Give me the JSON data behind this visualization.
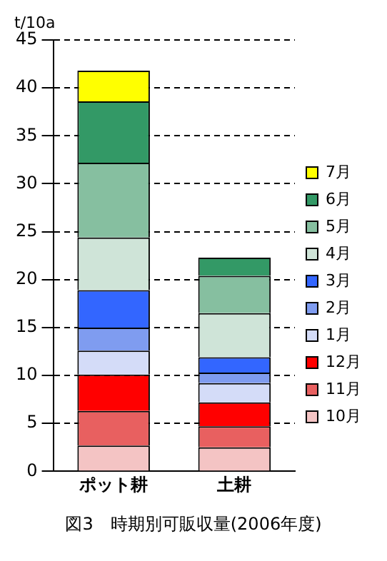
{
  "chart_data": {
    "type": "bar",
    "title": "図3　時期別可販収量(2006年度)",
    "ylabel": "t/10a",
    "categories": [
      "ポット耕",
      "土耕"
    ],
    "stacked": true,
    "series": [
      {
        "name": "10月",
        "color": "#f4c4c4",
        "values": [
          2.7,
          2.5
        ]
      },
      {
        "name": "11月",
        "color": "#e86060",
        "values": [
          3.6,
          2.2
        ]
      },
      {
        "name": "12月",
        "color": "#ff0000",
        "values": [
          3.8,
          2.5
        ]
      },
      {
        "name": "1月",
        "color": "#d4dcf8",
        "values": [
          2.5,
          2.0
        ]
      },
      {
        "name": "2月",
        "color": "#7f9cf0",
        "values": [
          2.4,
          1.1
        ]
      },
      {
        "name": "3月",
        "color": "#3366ff",
        "values": [
          3.9,
          1.6
        ]
      },
      {
        "name": "4月",
        "color": "#cfe4d8",
        "values": [
          5.5,
          4.6
        ]
      },
      {
        "name": "5月",
        "color": "#86bfa0",
        "values": [
          7.8,
          3.9
        ]
      },
      {
        "name": "6月",
        "color": "#339966",
        "values": [
          6.4,
          1.9
        ]
      },
      {
        "name": "7月",
        "color": "#ffff00",
        "values": [
          3.2,
          null
        ]
      }
    ],
    "ylim": [
      0,
      45
    ],
    "yticks": [
      0,
      5,
      10,
      15,
      20,
      25,
      30,
      35,
      40,
      45
    ],
    "grid": "y",
    "legend": "right"
  }
}
